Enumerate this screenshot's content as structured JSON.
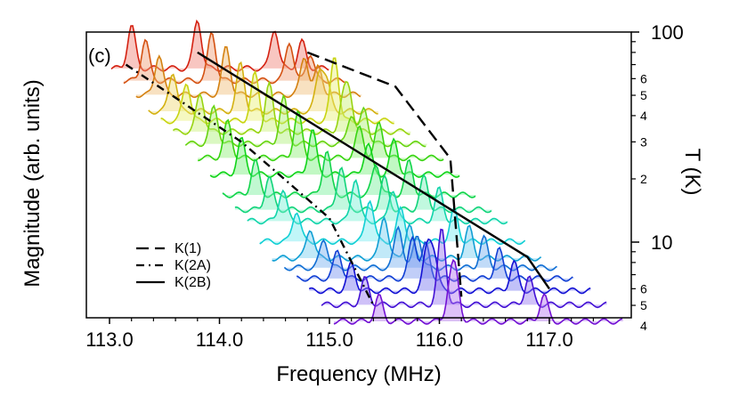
{
  "chart_data": {
    "type": "line",
    "panel_label": "(c)",
    "xlabel": "Frequency (MHz)",
    "ylabel_left": "Magnitude (arb. units)",
    "ylabel_right": "T (K)",
    "xlim": [
      112.9,
      117.5
    ],
    "x_ticks": [
      "113.0",
      "114.0",
      "115.0",
      "116.0",
      "117.0"
    ],
    "right_axis": {
      "scale": "log",
      "range": [
        4,
        100
      ],
      "major_tick_labels": [
        "100",
        "10"
      ],
      "minor_tick_labels": [
        "6",
        "5",
        "4",
        "3",
        "2",
        "6",
        "5",
        "4"
      ]
    },
    "legend": [
      {
        "label": "K(1)",
        "style": "dashed"
      },
      {
        "label": "K(2A)",
        "style": "dash-dot"
      },
      {
        "label": "K(2B)",
        "style": "solid"
      }
    ],
    "guide_lines": [
      {
        "name": "K(1)",
        "points": [
          [
            114.8,
            80
          ],
          [
            115.6,
            55
          ],
          [
            116.1,
            25
          ],
          [
            116.2,
            5.5
          ]
        ]
      },
      {
        "name": "K(2A)",
        "points": [
          [
            113.15,
            70
          ],
          [
            114.2,
            30
          ],
          [
            115.0,
            13
          ],
          [
            115.4,
            5
          ]
        ]
      },
      {
        "name": "K(2B)",
        "points": [
          [
            113.8,
            80
          ],
          [
            116.8,
            8.5
          ],
          [
            117.0,
            6
          ]
        ]
      }
    ],
    "series_temperatures_K": [
      80,
      70,
      60,
      50,
      45,
      40,
      35,
      30,
      25,
      20,
      17,
      15,
      12,
      10,
      9,
      8,
      7,
      6,
      5
    ]
  }
}
